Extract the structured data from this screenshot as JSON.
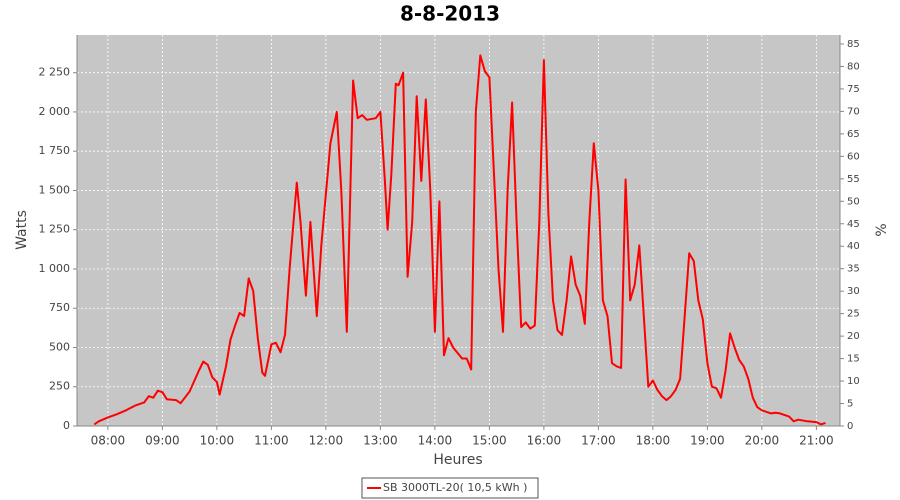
{
  "chart_data": {
    "type": "line",
    "title": "8-8-2013",
    "xlabel": "Heures",
    "ylabel": "Watts",
    "y2label": "%",
    "x": [
      "07:45",
      "07:50",
      "08:00",
      "08:10",
      "08:20",
      "08:30",
      "08:40",
      "08:45",
      "08:50",
      "08:55",
      "09:00",
      "09:05",
      "09:15",
      "09:20",
      "09:30",
      "09:40",
      "09:45",
      "09:50",
      "09:55",
      "10:00",
      "10:03",
      "10:10",
      "10:15",
      "10:20",
      "10:25",
      "10:30",
      "10:35",
      "10:40",
      "10:45",
      "10:50",
      "10:53",
      "11:00",
      "11:05",
      "11:10",
      "11:15",
      "11:20",
      "11:28",
      "11:32",
      "11:38",
      "11:43",
      "11:50",
      "11:55",
      "12:05",
      "12:12",
      "12:17",
      "12:23",
      "12:30",
      "12:35",
      "12:40",
      "12:45",
      "12:55",
      "13:00",
      "13:05",
      "13:08",
      "13:12",
      "13:17",
      "13:20",
      "13:25",
      "13:30",
      "13:35",
      "13:40",
      "13:45",
      "13:50",
      "13:55",
      "14:00",
      "14:05",
      "14:10",
      "14:15",
      "14:20",
      "14:30",
      "14:35",
      "14:40",
      "14:45",
      "14:50",
      "14:55",
      "15:00",
      "15:10",
      "15:15",
      "15:20",
      "15:25",
      "15:30",
      "15:35",
      "15:40",
      "15:45",
      "15:50",
      "15:55",
      "16:00",
      "16:05",
      "16:10",
      "16:15",
      "16:20",
      "16:25",
      "16:30",
      "16:35",
      "16:40",
      "16:45",
      "16:50",
      "16:55",
      "17:00",
      "17:05",
      "17:10",
      "17:15",
      "17:20",
      "17:25",
      "17:30",
      "17:35",
      "17:40",
      "17:45",
      "17:50",
      "17:55",
      "18:00",
      "18:05",
      "18:10",
      "18:15",
      "18:20",
      "18:25",
      "18:30",
      "18:35",
      "18:40",
      "18:45",
      "18:50",
      "18:55",
      "19:00",
      "19:05",
      "19:10",
      "19:15",
      "19:20",
      "19:25",
      "19:30",
      "19:35",
      "19:40",
      "19:45",
      "19:50",
      "19:55",
      "20:00",
      "20:10",
      "20:15",
      "20:20",
      "20:30",
      "20:35",
      "20:40",
      "20:50",
      "21:00",
      "21:05",
      "21:10"
    ],
    "series": [
      {
        "name": "SB 3000TL-20( 10,5 kWh )",
        "color": "#ff0000",
        "values": [
          10,
          30,
          55,
          75,
          100,
          130,
          150,
          190,
          180,
          225,
          215,
          170,
          165,
          145,
          220,
          350,
          410,
          390,
          310,
          280,
          200,
          380,
          550,
          640,
          720,
          700,
          940,
          860,
          560,
          340,
          320,
          520,
          530,
          470,
          580,
          1000,
          1550,
          1300,
          830,
          1300,
          700,
          1150,
          1800,
          2000,
          1500,
          600,
          2200,
          1960,
          1980,
          1950,
          1960,
          2000,
          1560,
          1250,
          1600,
          2180,
          2170,
          2250,
          950,
          1300,
          2100,
          1560,
          2080,
          1500,
          600,
          1430,
          450,
          560,
          500,
          430,
          430,
          360,
          2000,
          2360,
          2260,
          2220,
          1000,
          600,
          1500,
          2060,
          1300,
          630,
          660,
          620,
          640,
          1300,
          2330,
          1350,
          800,
          610,
          580,
          800,
          1080,
          900,
          830,
          650,
          1300,
          1800,
          1500,
          800,
          700,
          400,
          380,
          370,
          1570,
          800,
          900,
          1150,
          700,
          250,
          290,
          230,
          190,
          165,
          190,
          230,
          300,
          700,
          1100,
          1050,
          800,
          680,
          400,
          250,
          240,
          180,
          350,
          590,
          500,
          420,
          380,
          300,
          180,
          120,
          100,
          80,
          85,
          80,
          60,
          30,
          40,
          30,
          25,
          10,
          20
        ]
      }
    ],
    "xlim": [
      "07:26",
      "21:26"
    ],
    "xticks": [
      "08:00",
      "09:00",
      "10:00",
      "11:00",
      "12:00",
      "13:00",
      "14:00",
      "15:00",
      "16:00",
      "17:00",
      "18:00",
      "19:00",
      "20:00",
      "21:00"
    ],
    "ylim": [
      0,
      2490
    ],
    "yticks": [
      0,
      250,
      500,
      750,
      {
        "value": 1000,
        "label": "1 000"
      },
      {
        "value": 1250,
        "label": "1 250"
      },
      {
        "value": 1500,
        "label": "1 500"
      },
      {
        "value": 1750,
        "label": "1 750"
      },
      {
        "value": 2000,
        "label": "2 000"
      },
      {
        "value": 2250,
        "label": "2 250"
      }
    ],
    "y2lim": [
      0,
      87
    ],
    "y2ticks": [
      0,
      5,
      10,
      15,
      20,
      25,
      30,
      35,
      40,
      45,
      50,
      55,
      60,
      65,
      70,
      75,
      80,
      85
    ],
    "grid": true,
    "legend": "bottom"
  }
}
